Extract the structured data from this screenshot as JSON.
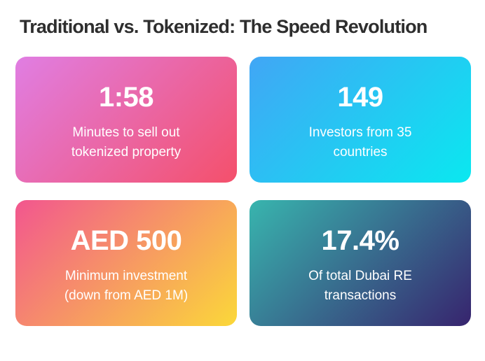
{
  "page": {
    "title": "Traditional vs. Tokenized: The Speed Revolution",
    "background_color": "#ffffff",
    "title_color": "#2e2e2e",
    "text_color_on_cards": "#ffffff"
  },
  "cards": [
    {
      "id": "sellout-time",
      "value": "1:58",
      "label": "Minutes to sell out tokenized property",
      "gradient_start": "#e07ee3",
      "gradient_end": "#f4506b"
    },
    {
      "id": "investors",
      "value": "149",
      "label": "Investors from 35 countries",
      "gradient_start": "#41a6f5",
      "gradient_end": "#0ae8f0"
    },
    {
      "id": "minimum-investment",
      "value": "AED 500",
      "label": "Minimum investment (down from AED 1M)",
      "gradient_start": "#f2568f",
      "gradient_end": "#fbd839"
    },
    {
      "id": "market-share",
      "value": "17.4%",
      "label": "Of total Dubai RE transactions",
      "gradient_start": "#38b5ae",
      "gradient_end": "#37246e"
    }
  ],
  "chart_data": {
    "type": "table",
    "title": "Traditional vs. Tokenized: The Speed Revolution",
    "stats": [
      {
        "value": "1:58",
        "label": "Minutes to sell out tokenized property"
      },
      {
        "value": "149",
        "label": "Investors from 35 countries"
      },
      {
        "value": "AED 500",
        "label": "Minimum investment (down from AED 1M)"
      },
      {
        "value": "17.4%",
        "label": "Of total Dubai RE transactions"
      }
    ]
  }
}
